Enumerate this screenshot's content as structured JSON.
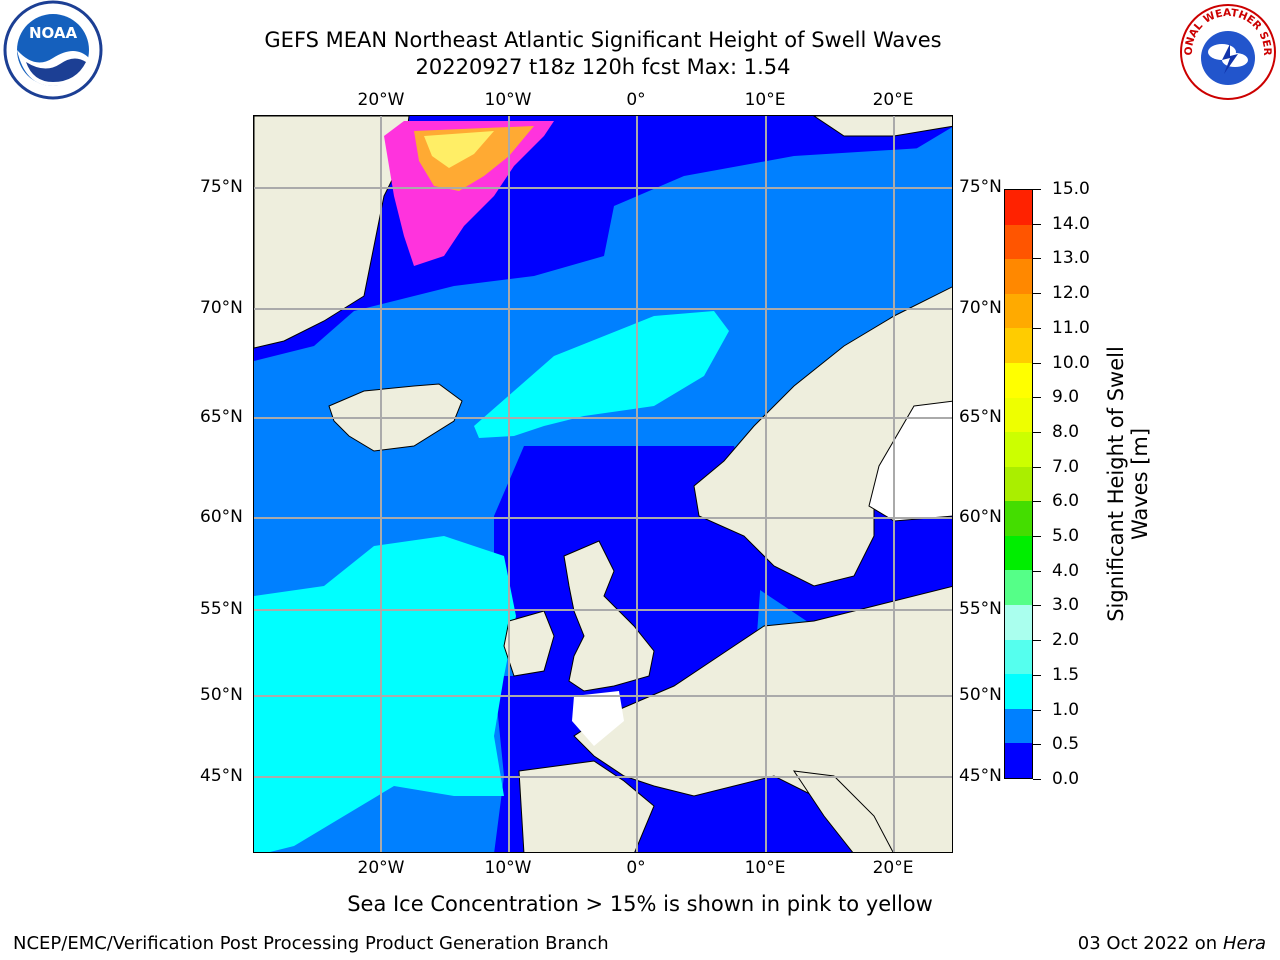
{
  "header": {
    "title_line1": "GEFS MEAN Northeast Atlantic Significant Height of Swell Waves",
    "title_line2": "20220927 t18z 120h fcst   Max: 1.54"
  },
  "logos": {
    "left": "NOAA",
    "right": "NATIONAL WEATHER SERVICE"
  },
  "map": {
    "x_ticks_top": [
      "20°W",
      "10°W",
      "0°",
      "10°E",
      "20°E"
    ],
    "x_ticks_bottom": [
      "20°W",
      "10°W",
      "0°",
      "10°E",
      "20°E"
    ],
    "y_ticks_left": [
      "75°N",
      "70°N",
      "65°N",
      "60°N",
      "55°N",
      "50°N",
      "45°N"
    ],
    "y_ticks_right": [
      "75°N",
      "70°N",
      "65°N",
      "60°N",
      "55°N",
      "50°N",
      "45°N"
    ],
    "colors": {
      "land": "#eeeedd",
      "ocean_0_05": "#0000ff",
      "ocean_05_10": "#0080ff",
      "ocean_10_15": "#00ffff",
      "gridline": "#aaaaaa",
      "ice_pink": "#ff33dd",
      "ice_orange": "#ffaa33",
      "ice_yellow": "#ffee66"
    }
  },
  "colorbar": {
    "title": "Significant Height of Swell Waves [m]",
    "title_line1": "Significant Height of Swell",
    "title_line2": "Waves [m]",
    "labels": [
      "0.0",
      "0.5",
      "1.0",
      "1.5",
      "2.0",
      "3.0",
      "4.0",
      "5.0",
      "6.0",
      "7.0",
      "8.0",
      "9.0",
      "10.0",
      "11.0",
      "12.0",
      "13.0",
      "14.0",
      "15.0"
    ],
    "colors": [
      "#0000ff",
      "#0080ff",
      "#00ffff",
      "#55ffee",
      "#aaffee",
      "#55ff88",
      "#00ee00",
      "#44dd00",
      "#aaee00",
      "#ccff00",
      "#eeff00",
      "#ffff00",
      "#ffcc00",
      "#ffaa00",
      "#ff8800",
      "#ff5500",
      "#ff2200"
    ]
  },
  "annotation": "Sea Ice Concentration > 15% is shown in pink to yellow",
  "footer": {
    "left": "NCEP/EMC/Verification Post Processing Product Generation Branch",
    "right_date": "03 Oct 2022 on ",
    "right_machine": "Hera"
  }
}
